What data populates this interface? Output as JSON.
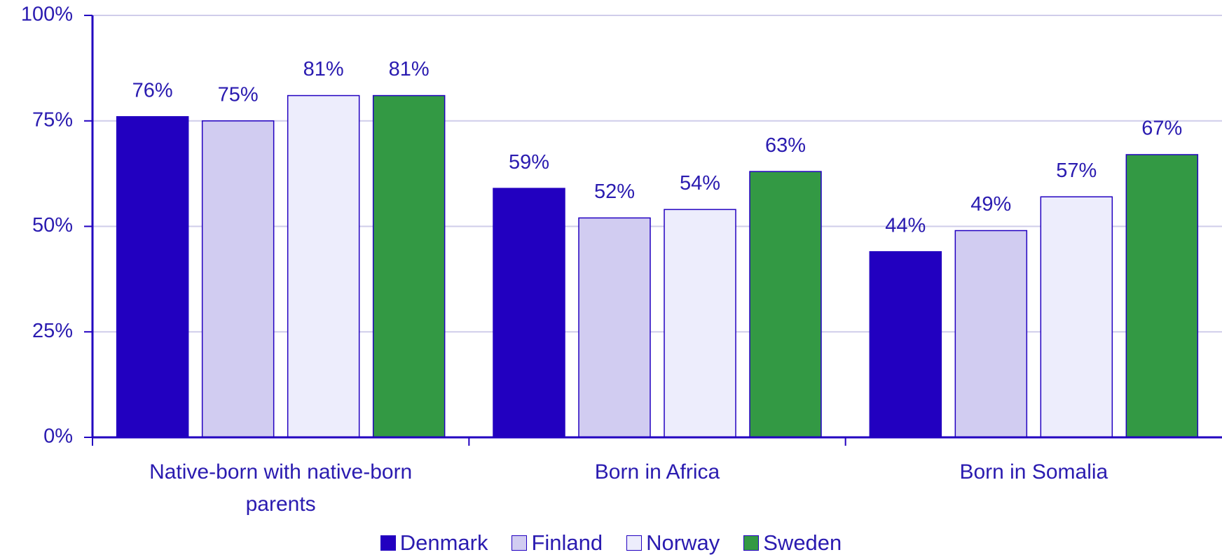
{
  "chart_data": {
    "type": "bar",
    "categories": [
      "Native-born with native-born parents",
      "Born in Africa",
      "Born in Somalia"
    ],
    "series": [
      {
        "name": "Denmark",
        "color": "#2200c0",
        "values": [
          76,
          59,
          44
        ],
        "value_labels": [
          "76%",
          "59%",
          "44%"
        ]
      },
      {
        "name": "Finland",
        "color": "#d1ccf1",
        "values": [
          75,
          52,
          49
        ],
        "value_labels": [
          "75%",
          "52%",
          "49%"
        ]
      },
      {
        "name": "Norway",
        "color": "#ededfc",
        "values": [
          81,
          54,
          57
        ],
        "value_labels": [
          "81%",
          "54%",
          "57%"
        ]
      },
      {
        "name": "Sweden",
        "color": "#339944",
        "values": [
          81,
          63,
          67
        ],
        "value_labels": [
          "81%",
          "63%",
          "67%"
        ]
      }
    ],
    "ylim": [
      0,
      100
    ],
    "yticks": [
      {
        "value": 0,
        "label": "0%"
      },
      {
        "value": 25,
        "label": "25%"
      },
      {
        "value": 50,
        "label": "50%"
      },
      {
        "value": 75,
        "label": "75%"
      },
      {
        "value": 100,
        "label": "100%"
      }
    ],
    "grid": true,
    "legend": "bottom"
  }
}
